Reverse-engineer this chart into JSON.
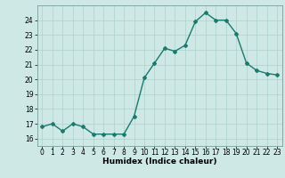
{
  "x": [
    0,
    1,
    2,
    3,
    4,
    5,
    6,
    7,
    8,
    9,
    10,
    11,
    12,
    13,
    14,
    15,
    16,
    17,
    18,
    19,
    20,
    21,
    22,
    23
  ],
  "y": [
    16.8,
    17.0,
    16.5,
    17.0,
    16.8,
    16.3,
    16.3,
    16.3,
    16.3,
    17.5,
    20.1,
    21.1,
    22.1,
    21.9,
    22.3,
    23.9,
    24.5,
    24.0,
    24.0,
    23.1,
    21.1,
    20.6,
    20.4,
    20.3
  ],
  "line_color": "#1a7a6e",
  "marker": "D",
  "marker_size": 2.0,
  "bg_color": "#cde8e5",
  "grid_color": "#aed0cc",
  "xlabel": "Humidex (Indice chaleur)",
  "ylabel": "",
  "xlim": [
    -0.5,
    23.5
  ],
  "ylim": [
    15.5,
    25.0
  ],
  "yticks": [
    16,
    17,
    18,
    19,
    20,
    21,
    22,
    23,
    24
  ],
  "xticks": [
    0,
    1,
    2,
    3,
    4,
    5,
    6,
    7,
    8,
    9,
    10,
    11,
    12,
    13,
    14,
    15,
    16,
    17,
    18,
    19,
    20,
    21,
    22,
    23
  ],
  "xlabel_fontsize": 6.5,
  "tick_fontsize": 5.5,
  "line_width": 1.0
}
